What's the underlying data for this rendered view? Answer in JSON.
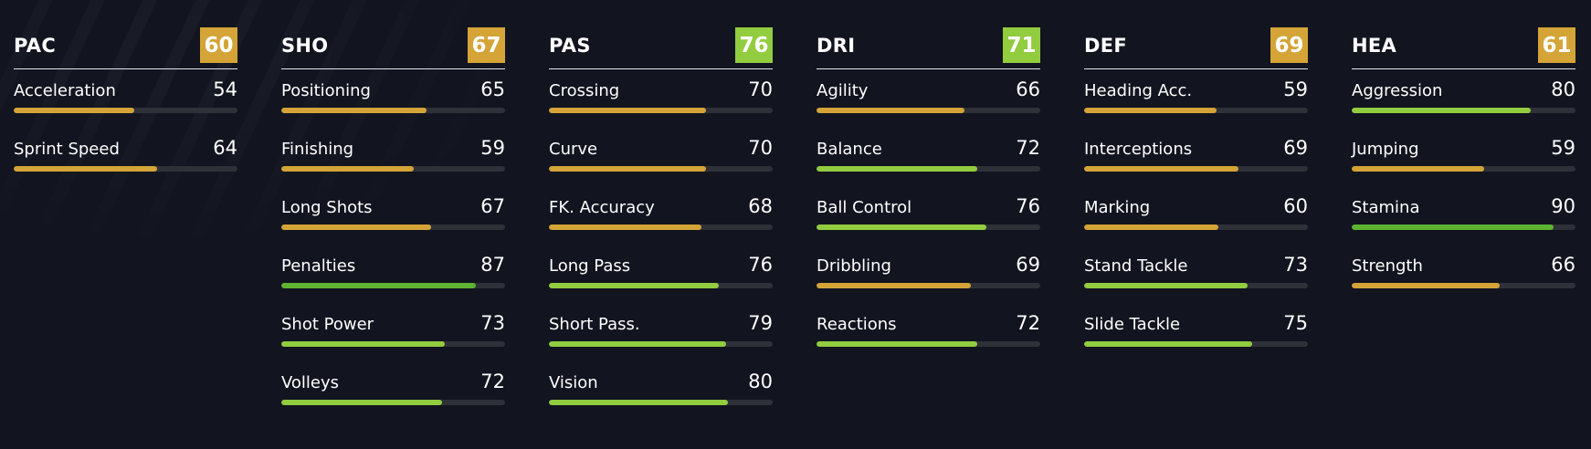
{
  "colors": {
    "gold": "#d4a437",
    "green": "#92cc3f",
    "bright_green": "#5eb331",
    "track": "#2f3139",
    "background": "#12141f"
  },
  "groups": [
    {
      "label": "PAC",
      "rating": "60",
      "tier": "gold",
      "stats": [
        {
          "name": "Acceleration",
          "value": "54",
          "tier": "gold"
        },
        {
          "name": "Sprint Speed",
          "value": "64",
          "tier": "gold"
        }
      ]
    },
    {
      "label": "SHO",
      "rating": "67",
      "tier": "gold",
      "stats": [
        {
          "name": "Positioning",
          "value": "65",
          "tier": "gold"
        },
        {
          "name": "Finishing",
          "value": "59",
          "tier": "gold"
        },
        {
          "name": "Long Shots",
          "value": "67",
          "tier": "gold"
        },
        {
          "name": "Penalties",
          "value": "87",
          "tier": "bright_green"
        },
        {
          "name": "Shot Power",
          "value": "73",
          "tier": "green"
        },
        {
          "name": "Volleys",
          "value": "72",
          "tier": "green"
        }
      ]
    },
    {
      "label": "PAS",
      "rating": "76",
      "tier": "green",
      "stats": [
        {
          "name": "Crossing",
          "value": "70",
          "tier": "gold"
        },
        {
          "name": "Curve",
          "value": "70",
          "tier": "gold"
        },
        {
          "name": "FK. Accuracy",
          "value": "68",
          "tier": "gold"
        },
        {
          "name": "Long Pass",
          "value": "76",
          "tier": "green"
        },
        {
          "name": "Short Pass.",
          "value": "79",
          "tier": "green"
        },
        {
          "name": "Vision",
          "value": "80",
          "tier": "green"
        }
      ]
    },
    {
      "label": "DRI",
      "rating": "71",
      "tier": "green",
      "stats": [
        {
          "name": "Agility",
          "value": "66",
          "tier": "gold"
        },
        {
          "name": "Balance",
          "value": "72",
          "tier": "green"
        },
        {
          "name": "Ball Control",
          "value": "76",
          "tier": "green"
        },
        {
          "name": "Dribbling",
          "value": "69",
          "tier": "gold"
        },
        {
          "name": "Reactions",
          "value": "72",
          "tier": "green"
        }
      ]
    },
    {
      "label": "DEF",
      "rating": "69",
      "tier": "gold",
      "stats": [
        {
          "name": "Heading Acc.",
          "value": "59",
          "tier": "gold"
        },
        {
          "name": "Interceptions",
          "value": "69",
          "tier": "gold"
        },
        {
          "name": "Marking",
          "value": "60",
          "tier": "gold"
        },
        {
          "name": "Stand Tackle",
          "value": "73",
          "tier": "green"
        },
        {
          "name": "Slide Tackle",
          "value": "75",
          "tier": "green"
        }
      ]
    },
    {
      "label": "HEA",
      "rating": "61",
      "tier": "gold",
      "stats": [
        {
          "name": "Aggression",
          "value": "80",
          "tier": "green"
        },
        {
          "name": "Jumping",
          "value": "59",
          "tier": "gold"
        },
        {
          "name": "Stamina",
          "value": "90",
          "tier": "bright_green"
        },
        {
          "name": "Strength",
          "value": "66",
          "tier": "gold"
        }
      ]
    }
  ]
}
